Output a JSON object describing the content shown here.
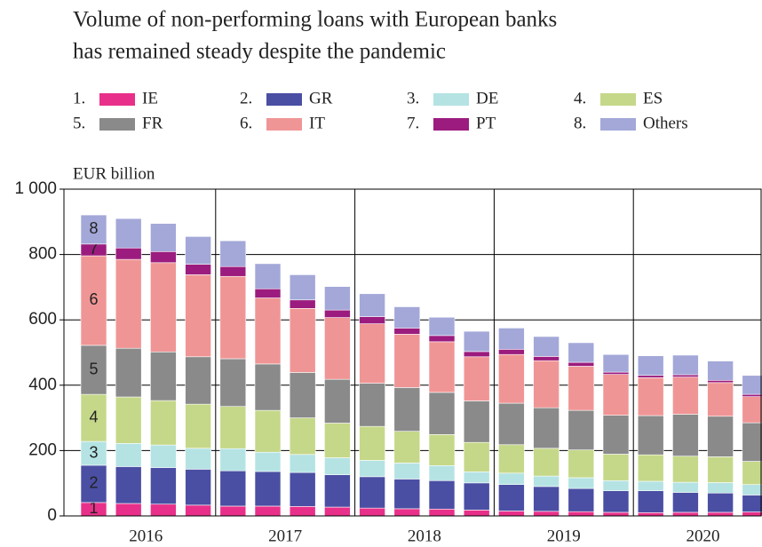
{
  "chart_data": {
    "type": "stacked-bar",
    "title": [
      "Volume of non-performing loans with European banks",
      "has remained steady despite the pandemic"
    ],
    "y_label": "EUR billion",
    "legend_numbers": [
      "1.",
      "2.",
      "3.",
      "4.",
      "5.",
      "6.",
      "7.",
      "8."
    ],
    "segment_labels": [
      "1",
      "2",
      "3",
      "4",
      "5",
      "6",
      "7",
      "8"
    ],
    "categories": [
      "2016",
      null,
      null,
      null,
      "2017",
      null,
      null,
      null,
      "2018",
      null,
      null,
      null,
      "2019",
      null,
      null,
      null,
      "2020",
      null,
      null,
      null
    ],
    "series": [
      {
        "name": "IE",
        "color": "#e8308a",
        "values": [
          41,
          38,
          36,
          33,
          30,
          30,
          29,
          27,
          24,
          22,
          21,
          18,
          15,
          14,
          13,
          11,
          10,
          11,
          11,
          12
        ]
      },
      {
        "name": "GR",
        "color": "#4a4fa3",
        "values": [
          114,
          113,
          112,
          110,
          108,
          106,
          104,
          99,
          96,
          91,
          87,
          83,
          81,
          76,
          71,
          66,
          67,
          61,
          59,
          52
        ]
      },
      {
        "name": "DE",
        "color": "#b5e3e3",
        "values": [
          73,
          71,
          69,
          64,
          68,
          59,
          55,
          52,
          50,
          49,
          46,
          34,
          35,
          32,
          33,
          31,
          29,
          31,
          32,
          32
        ]
      },
      {
        "name": "ES",
        "color": "#c5d889",
        "values": [
          144,
          142,
          136,
          135,
          129,
          128,
          112,
          106,
          104,
          97,
          95,
          90,
          87,
          85,
          85,
          81,
          81,
          80,
          79,
          71
        ]
      },
      {
        "name": "FR",
        "color": "#8a8a8a",
        "values": [
          150,
          149,
          149,
          145,
          146,
          142,
          139,
          134,
          132,
          134,
          129,
          127,
          127,
          124,
          121,
          119,
          120,
          128,
          124,
          118
        ]
      },
      {
        "name": "IT",
        "color": "#f09595",
        "values": [
          274,
          272,
          273,
          251,
          252,
          202,
          196,
          189,
          182,
          163,
          155,
          135,
          149,
          144,
          135,
          125,
          116,
          114,
          103,
          80
        ]
      },
      {
        "name": "PT",
        "color": "#9b1c7e",
        "values": [
          36,
          35,
          34,
          32,
          30,
          28,
          26,
          23,
          22,
          19,
          19,
          16,
          16,
          13,
          12,
          7,
          7,
          7,
          7,
          7
        ]
      },
      {
        "name": "Others",
        "color": "#a3a8d8",
        "values": [
          89,
          90,
          86,
          85,
          79,
          77,
          77,
          72,
          70,
          65,
          56,
          62,
          65,
          61,
          60,
          54,
          60,
          60,
          59,
          58
        ]
      }
    ],
    "ylim": [
      0,
      1000
    ],
    "yticks": [
      0,
      200,
      400,
      600,
      800,
      {
        "value": 1000,
        "label": "1 000"
      }
    ],
    "grid": true
  }
}
